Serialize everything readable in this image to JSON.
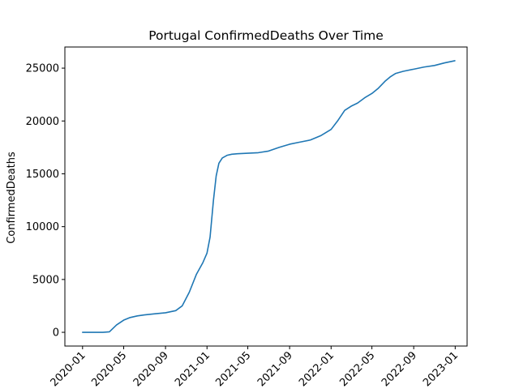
{
  "chart_data": {
    "type": "line",
    "title": "Portugal  ConfirmedDeaths Over Time",
    "xlabel": "",
    "ylabel": "ConfirmedDeaths",
    "xlim": [
      "2019-11-10",
      "2023-02-05"
    ],
    "ylim": [
      -1300,
      27000
    ],
    "grid": false,
    "x_ticks": [
      "2020-01",
      "2020-05",
      "2020-09",
      "2021-01",
      "2021-05",
      "2021-09",
      "2022-01",
      "2022-05",
      "2022-09",
      "2023-01"
    ],
    "y_ticks": [
      0,
      5000,
      10000,
      15000,
      20000,
      25000
    ],
    "series": [
      {
        "color": "#1f77b4",
        "x": [
          "2020-01-01",
          "2020-02-01",
          "2020-03-01",
          "2020-03-20",
          "2020-04-10",
          "2020-05-01",
          "2020-05-20",
          "2020-06-10",
          "2020-07-01",
          "2020-08-01",
          "2020-09-01",
          "2020-10-01",
          "2020-10-20",
          "2020-11-10",
          "2020-12-01",
          "2020-12-20",
          "2021-01-01",
          "2021-01-10",
          "2021-01-20",
          "2021-01-28",
          "2021-02-05",
          "2021-02-15",
          "2021-03-01",
          "2021-03-15",
          "2021-04-01",
          "2021-05-01",
          "2021-06-01",
          "2021-07-01",
          "2021-08-01",
          "2021-09-01",
          "2021-10-01",
          "2021-11-01",
          "2021-12-01",
          "2022-01-01",
          "2022-01-20",
          "2022-02-10",
          "2022-03-01",
          "2022-03-20",
          "2022-04-10",
          "2022-05-01",
          "2022-05-20",
          "2022-06-10",
          "2022-06-25",
          "2022-07-10",
          "2022-08-01",
          "2022-09-01",
          "2022-10-01",
          "2022-11-01",
          "2022-12-01",
          "2022-12-31"
        ],
        "y": [
          0,
          0,
          0,
          50,
          700,
          1150,
          1400,
          1550,
          1650,
          1750,
          1850,
          2050,
          2500,
          3800,
          5500,
          6600,
          7500,
          9000,
          12500,
          14800,
          16000,
          16500,
          16750,
          16850,
          16900,
          16950,
          17000,
          17150,
          17500,
          17800,
          18000,
          18200,
          18600,
          19200,
          20000,
          21000,
          21400,
          21700,
          22200,
          22600,
          23100,
          23800,
          24200,
          24500,
          24700,
          24900,
          25100,
          25250,
          25500,
          25700
        ]
      }
    ]
  }
}
